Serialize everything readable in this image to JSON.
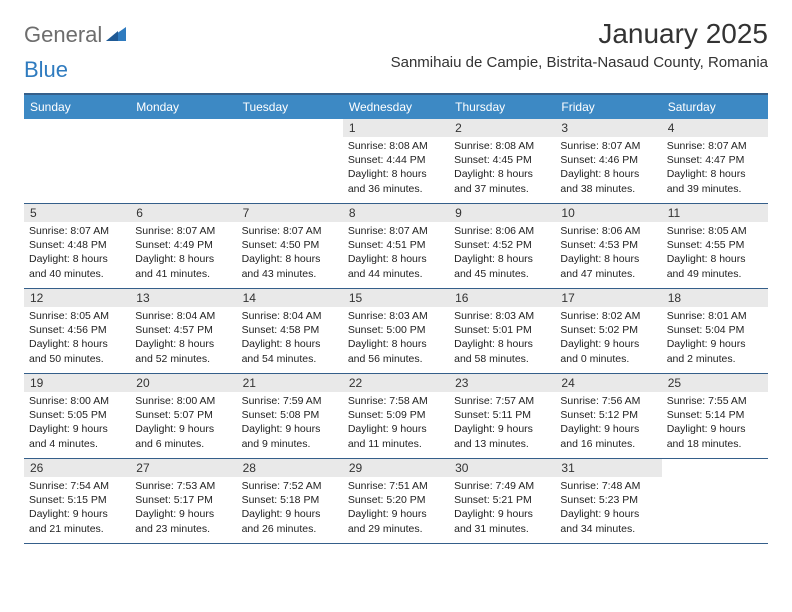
{
  "brand": {
    "part1": "General",
    "part2": "Blue"
  },
  "title": "January 2025",
  "location": "Sanmihaiu de Campie, Bistrita-Nasaud County, Romania",
  "colors": {
    "header_bar": "#3d89c4",
    "header_border": "#355f8a",
    "daynum_bg": "#e9e9e9",
    "logo_gray": "#6d6d6d",
    "logo_blue": "#2f7bbf",
    "text": "#222222",
    "bg": "#ffffff"
  },
  "typography": {
    "title_fontsize": 28,
    "location_fontsize": 15,
    "dayhead_fontsize": 12,
    "daynum_fontsize": 12,
    "body_fontsize": 10.5
  },
  "day_headers": [
    "Sunday",
    "Monday",
    "Tuesday",
    "Wednesday",
    "Thursday",
    "Friday",
    "Saturday"
  ],
  "weeks": [
    [
      {
        "n": "",
        "sunrise": "",
        "sunset": "",
        "daylight": ""
      },
      {
        "n": "",
        "sunrise": "",
        "sunset": "",
        "daylight": ""
      },
      {
        "n": "",
        "sunrise": "",
        "sunset": "",
        "daylight": ""
      },
      {
        "n": "1",
        "sunrise": "Sunrise: 8:08 AM",
        "sunset": "Sunset: 4:44 PM",
        "daylight": "Daylight: 8 hours and 36 minutes."
      },
      {
        "n": "2",
        "sunrise": "Sunrise: 8:08 AM",
        "sunset": "Sunset: 4:45 PM",
        "daylight": "Daylight: 8 hours and 37 minutes."
      },
      {
        "n": "3",
        "sunrise": "Sunrise: 8:07 AM",
        "sunset": "Sunset: 4:46 PM",
        "daylight": "Daylight: 8 hours and 38 minutes."
      },
      {
        "n": "4",
        "sunrise": "Sunrise: 8:07 AM",
        "sunset": "Sunset: 4:47 PM",
        "daylight": "Daylight: 8 hours and 39 minutes."
      }
    ],
    [
      {
        "n": "5",
        "sunrise": "Sunrise: 8:07 AM",
        "sunset": "Sunset: 4:48 PM",
        "daylight": "Daylight: 8 hours and 40 minutes."
      },
      {
        "n": "6",
        "sunrise": "Sunrise: 8:07 AM",
        "sunset": "Sunset: 4:49 PM",
        "daylight": "Daylight: 8 hours and 41 minutes."
      },
      {
        "n": "7",
        "sunrise": "Sunrise: 8:07 AM",
        "sunset": "Sunset: 4:50 PM",
        "daylight": "Daylight: 8 hours and 43 minutes."
      },
      {
        "n": "8",
        "sunrise": "Sunrise: 8:07 AM",
        "sunset": "Sunset: 4:51 PM",
        "daylight": "Daylight: 8 hours and 44 minutes."
      },
      {
        "n": "9",
        "sunrise": "Sunrise: 8:06 AM",
        "sunset": "Sunset: 4:52 PM",
        "daylight": "Daylight: 8 hours and 45 minutes."
      },
      {
        "n": "10",
        "sunrise": "Sunrise: 8:06 AM",
        "sunset": "Sunset: 4:53 PM",
        "daylight": "Daylight: 8 hours and 47 minutes."
      },
      {
        "n": "11",
        "sunrise": "Sunrise: 8:05 AM",
        "sunset": "Sunset: 4:55 PM",
        "daylight": "Daylight: 8 hours and 49 minutes."
      }
    ],
    [
      {
        "n": "12",
        "sunrise": "Sunrise: 8:05 AM",
        "sunset": "Sunset: 4:56 PM",
        "daylight": "Daylight: 8 hours and 50 minutes."
      },
      {
        "n": "13",
        "sunrise": "Sunrise: 8:04 AM",
        "sunset": "Sunset: 4:57 PM",
        "daylight": "Daylight: 8 hours and 52 minutes."
      },
      {
        "n": "14",
        "sunrise": "Sunrise: 8:04 AM",
        "sunset": "Sunset: 4:58 PM",
        "daylight": "Daylight: 8 hours and 54 minutes."
      },
      {
        "n": "15",
        "sunrise": "Sunrise: 8:03 AM",
        "sunset": "Sunset: 5:00 PM",
        "daylight": "Daylight: 8 hours and 56 minutes."
      },
      {
        "n": "16",
        "sunrise": "Sunrise: 8:03 AM",
        "sunset": "Sunset: 5:01 PM",
        "daylight": "Daylight: 8 hours and 58 minutes."
      },
      {
        "n": "17",
        "sunrise": "Sunrise: 8:02 AM",
        "sunset": "Sunset: 5:02 PM",
        "daylight": "Daylight: 9 hours and 0 minutes."
      },
      {
        "n": "18",
        "sunrise": "Sunrise: 8:01 AM",
        "sunset": "Sunset: 5:04 PM",
        "daylight": "Daylight: 9 hours and 2 minutes."
      }
    ],
    [
      {
        "n": "19",
        "sunrise": "Sunrise: 8:00 AM",
        "sunset": "Sunset: 5:05 PM",
        "daylight": "Daylight: 9 hours and 4 minutes."
      },
      {
        "n": "20",
        "sunrise": "Sunrise: 8:00 AM",
        "sunset": "Sunset: 5:07 PM",
        "daylight": "Daylight: 9 hours and 6 minutes."
      },
      {
        "n": "21",
        "sunrise": "Sunrise: 7:59 AM",
        "sunset": "Sunset: 5:08 PM",
        "daylight": "Daylight: 9 hours and 9 minutes."
      },
      {
        "n": "22",
        "sunrise": "Sunrise: 7:58 AM",
        "sunset": "Sunset: 5:09 PM",
        "daylight": "Daylight: 9 hours and 11 minutes."
      },
      {
        "n": "23",
        "sunrise": "Sunrise: 7:57 AM",
        "sunset": "Sunset: 5:11 PM",
        "daylight": "Daylight: 9 hours and 13 minutes."
      },
      {
        "n": "24",
        "sunrise": "Sunrise: 7:56 AM",
        "sunset": "Sunset: 5:12 PM",
        "daylight": "Daylight: 9 hours and 16 minutes."
      },
      {
        "n": "25",
        "sunrise": "Sunrise: 7:55 AM",
        "sunset": "Sunset: 5:14 PM",
        "daylight": "Daylight: 9 hours and 18 minutes."
      }
    ],
    [
      {
        "n": "26",
        "sunrise": "Sunrise: 7:54 AM",
        "sunset": "Sunset: 5:15 PM",
        "daylight": "Daylight: 9 hours and 21 minutes."
      },
      {
        "n": "27",
        "sunrise": "Sunrise: 7:53 AM",
        "sunset": "Sunset: 5:17 PM",
        "daylight": "Daylight: 9 hours and 23 minutes."
      },
      {
        "n": "28",
        "sunrise": "Sunrise: 7:52 AM",
        "sunset": "Sunset: 5:18 PM",
        "daylight": "Daylight: 9 hours and 26 minutes."
      },
      {
        "n": "29",
        "sunrise": "Sunrise: 7:51 AM",
        "sunset": "Sunset: 5:20 PM",
        "daylight": "Daylight: 9 hours and 29 minutes."
      },
      {
        "n": "30",
        "sunrise": "Sunrise: 7:49 AM",
        "sunset": "Sunset: 5:21 PM",
        "daylight": "Daylight: 9 hours and 31 minutes."
      },
      {
        "n": "31",
        "sunrise": "Sunrise: 7:48 AM",
        "sunset": "Sunset: 5:23 PM",
        "daylight": "Daylight: 9 hours and 34 minutes."
      },
      {
        "n": "",
        "sunrise": "",
        "sunset": "",
        "daylight": ""
      }
    ]
  ]
}
